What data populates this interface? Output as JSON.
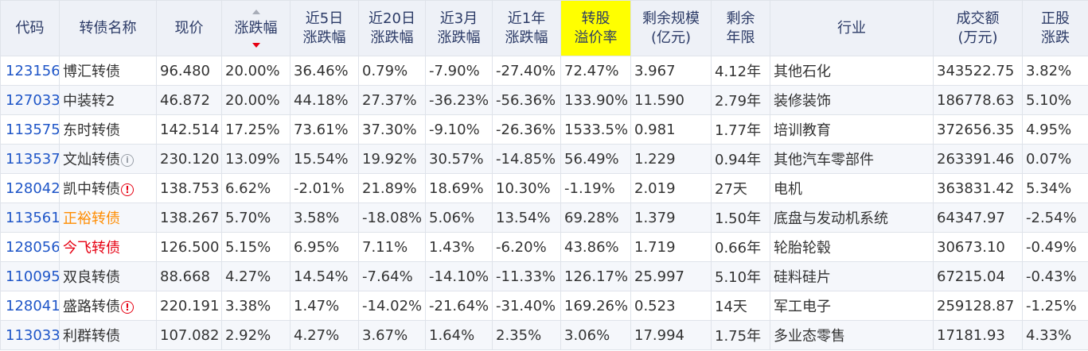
{
  "colors": {
    "header_bg": "#eef1f7",
    "highlight_header_bg": "#ffff00",
    "code_blue": "#1f56c8",
    "up_red": "#e60012",
    "down_green": "#1a8a1a",
    "name_orange": "#ff8c00"
  },
  "header": {
    "code": "代码",
    "name": "转债名称",
    "price": "现价",
    "change": "涨跌幅",
    "chg5d": [
      "近5日",
      "涨跌幅"
    ],
    "chg20d": [
      "近20日",
      "涨跌幅"
    ],
    "chg3m": [
      "近3月",
      "涨跌幅"
    ],
    "chg1y": [
      "近1年",
      "涨跌幅"
    ],
    "premium": [
      "转股",
      "溢价率"
    ],
    "scale": [
      "剩余规模",
      "(亿元)"
    ],
    "term": [
      "剩余",
      "年限"
    ],
    "industry": "行业",
    "turnover": [
      "成交额",
      "(万元)"
    ],
    "stock_chg": [
      "正股",
      "涨跌"
    ]
  },
  "rows": [
    {
      "code": "123156",
      "name": "博汇转债",
      "name_style": "normal",
      "badge": "",
      "price": "96.480",
      "change": "20.00%",
      "chg5d": "36.46%",
      "chg20d": "0.79%",
      "chg3m": "-7.90%",
      "chg1y": "-27.40%",
      "premium": "72.47%",
      "scale": "3.967",
      "term": "4.12年",
      "industry": "其他石化",
      "turnover": "343522.75",
      "stock_chg": "3.82%"
    },
    {
      "code": "127033",
      "name": "中装转2",
      "name_style": "normal",
      "badge": "",
      "price": "46.872",
      "change": "20.00%",
      "chg5d": "44.18%",
      "chg20d": "27.37%",
      "chg3m": "-36.23%",
      "chg1y": "-56.36%",
      "premium": "133.90%",
      "scale": "11.590",
      "term": "2.79年",
      "industry": "装修装饰",
      "turnover": "186778.63",
      "stock_chg": "5.10%"
    },
    {
      "code": "113575",
      "name": "东时转债",
      "name_style": "normal",
      "badge": "",
      "price": "142.514",
      "change": "17.25%",
      "chg5d": "73.61%",
      "chg20d": "37.30%",
      "chg3m": "-9.10%",
      "chg1y": "-26.36%",
      "premium": "1533.5%",
      "scale": "0.981",
      "term": "1.77年",
      "industry": "培训教育",
      "turnover": "372656.35",
      "stock_chg": "4.95%"
    },
    {
      "code": "113537",
      "name": "文灿转债",
      "name_style": "normal",
      "badge": "info",
      "price": "230.120",
      "change": "13.09%",
      "chg5d": "15.54%",
      "chg20d": "19.92%",
      "chg3m": "30.57%",
      "chg1y": "-14.85%",
      "premium": "56.49%",
      "scale": "1.229",
      "term": "0.94年",
      "industry": "其他汽车零部件",
      "turnover": "263391.46",
      "stock_chg": "0.07%"
    },
    {
      "code": "128042",
      "name": "凯中转债",
      "name_style": "normal",
      "badge": "warn",
      "price": "138.753",
      "change": "6.62%",
      "chg5d": "-2.01%",
      "chg20d": "21.89%",
      "chg3m": "18.69%",
      "chg1y": "10.30%",
      "premium": "-1.19%",
      "scale": "2.019",
      "term": "27天",
      "industry": "电机",
      "turnover": "363831.42",
      "stock_chg": "5.34%"
    },
    {
      "code": "113561",
      "name": "正裕转债",
      "name_style": "orange",
      "badge": "",
      "price": "138.267",
      "change": "5.70%",
      "chg5d": "3.58%",
      "chg20d": "-18.08%",
      "chg3m": "5.06%",
      "chg1y": "13.54%",
      "premium": "69.28%",
      "scale": "1.379",
      "term": "1.50年",
      "industry": "底盘与发动机系统",
      "turnover": "64347.97",
      "stock_chg": "-2.54%"
    },
    {
      "code": "128056",
      "name": "今飞转债",
      "name_style": "red",
      "badge": "",
      "price": "126.500",
      "change": "5.15%",
      "chg5d": "6.95%",
      "chg20d": "7.11%",
      "chg3m": "1.43%",
      "chg1y": "-6.20%",
      "premium": "43.86%",
      "scale": "1.719",
      "term": "0.66年",
      "industry": "轮胎轮毂",
      "turnover": "30673.10",
      "stock_chg": "-0.49%"
    },
    {
      "code": "110095",
      "name": "双良转债",
      "name_style": "normal",
      "badge": "",
      "price": "88.668",
      "change": "4.27%",
      "chg5d": "14.54%",
      "chg20d": "-7.64%",
      "chg3m": "-14.10%",
      "chg1y": "-11.33%",
      "premium": "126.17%",
      "scale": "25.997",
      "term": "5.10年",
      "industry": "硅料硅片",
      "turnover": "67215.04",
      "stock_chg": "-0.43%"
    },
    {
      "code": "128041",
      "name": "盛路转债",
      "name_style": "normal",
      "badge": "warn",
      "price": "220.191",
      "change": "3.38%",
      "chg5d": "1.47%",
      "chg20d": "-14.02%",
      "chg3m": "-21.64%",
      "chg1y": "-31.40%",
      "premium": "169.26%",
      "scale": "0.523",
      "term": "14天",
      "industry": "军工电子",
      "turnover": "259128.87",
      "stock_chg": "-1.25%"
    },
    {
      "code": "113033",
      "name": "利群转债",
      "name_style": "normal",
      "badge": "",
      "price": "107.082",
      "change": "2.92%",
      "chg5d": "4.27%",
      "chg20d": "3.67%",
      "chg3m": "1.64%",
      "chg1y": "2.35%",
      "premium": "3.06%",
      "scale": "17.994",
      "term": "1.75年",
      "industry": "多业态零售",
      "turnover": "17181.93",
      "stock_chg": "4.33%"
    }
  ]
}
